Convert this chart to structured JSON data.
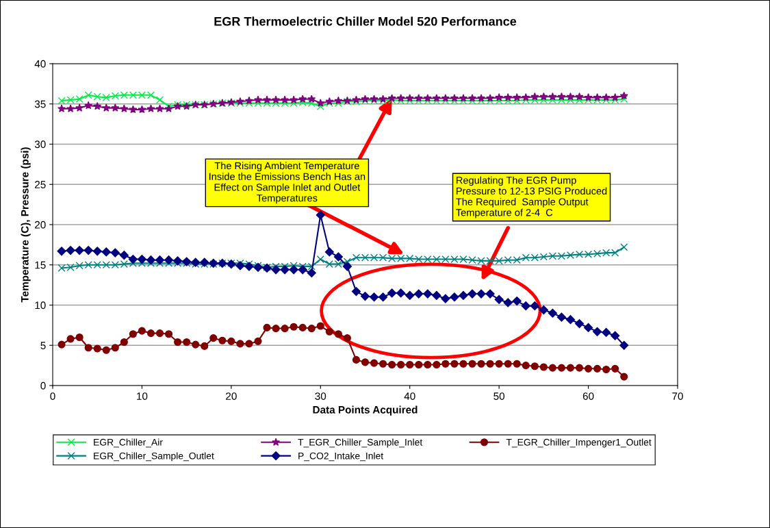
{
  "chart_data": {
    "type": "line",
    "title": "EGR Thermoelectric Chiller Model 520 Performance",
    "xlabel": "Data Points Acquired",
    "ylabel": "Temperature (C), Pressure (psi)",
    "x": [
      1,
      2,
      3,
      4,
      5,
      6,
      7,
      8,
      9,
      10,
      11,
      12,
      13,
      14,
      15,
      16,
      17,
      18,
      19,
      20,
      21,
      22,
      23,
      24,
      25,
      26,
      27,
      28,
      29,
      30,
      31,
      32,
      33,
      34,
      35,
      36,
      37,
      38,
      39,
      40,
      41,
      42,
      43,
      44,
      45,
      46,
      47,
      48,
      49,
      50,
      51,
      52,
      53,
      54,
      55,
      56,
      57,
      58,
      59,
      60,
      61,
      62,
      63,
      64
    ],
    "series": [
      {
        "name": "EGR_Chiller_Air",
        "color": "#00ee44",
        "marker": "cross",
        "values": [
          35.4,
          35.5,
          35.6,
          36.1,
          35.9,
          35.8,
          36.0,
          36.1,
          36.1,
          36.1,
          36.1,
          35.5,
          34.7,
          34.9,
          34.9,
          34.9,
          34.9,
          35.0,
          35.1,
          35.1,
          35.1,
          35.1,
          35.1,
          35.1,
          35.1,
          35.1,
          35.1,
          35.2,
          35.1,
          34.7,
          35.1,
          35.1,
          35.3,
          35.3,
          35.4,
          35.4,
          35.4,
          35.5,
          35.4,
          35.4,
          35.4,
          35.4,
          35.4,
          35.4,
          35.4,
          35.4,
          35.4,
          35.4,
          35.4,
          35.4,
          35.4,
          35.4,
          35.5,
          35.5,
          35.5,
          35.5,
          35.5,
          35.5,
          35.5,
          35.5,
          35.5,
          35.5,
          35.5,
          35.6
        ]
      },
      {
        "name": "T_EGR_Chiller_Sample_Inlet",
        "color": "#800080",
        "marker": "star",
        "values": [
          34.4,
          34.4,
          34.5,
          34.8,
          34.7,
          34.5,
          34.5,
          34.4,
          34.3,
          34.3,
          34.4,
          34.4,
          34.4,
          34.7,
          34.7,
          34.9,
          34.9,
          35.0,
          35.1,
          35.2,
          35.3,
          35.4,
          35.5,
          35.5,
          35.5,
          35.5,
          35.5,
          35.6,
          35.6,
          35.1,
          35.3,
          35.4,
          35.4,
          35.5,
          35.6,
          35.6,
          35.6,
          35.7,
          35.7,
          35.7,
          35.7,
          35.7,
          35.7,
          35.7,
          35.7,
          35.7,
          35.7,
          35.7,
          35.7,
          35.8,
          35.8,
          35.8,
          35.8,
          35.9,
          35.9,
          35.9,
          35.9,
          35.9,
          35.9,
          35.8,
          35.8,
          35.8,
          35.8,
          36.0
        ]
      },
      {
        "name": "T_EGR_Chiller_Impenger1_Outlet",
        "color": "#800000",
        "marker": "circle",
        "values": [
          5.1,
          5.8,
          6.0,
          4.7,
          4.6,
          4.4,
          4.7,
          5.4,
          6.4,
          6.8,
          6.5,
          6.5,
          6.4,
          5.4,
          5.4,
          5.1,
          4.9,
          5.9,
          5.6,
          5.5,
          5.2,
          5.2,
          5.5,
          7.2,
          7.1,
          7.1,
          7.3,
          7.2,
          7.1,
          7.4,
          6.7,
          6.4,
          5.9,
          3.2,
          2.9,
          2.8,
          2.7,
          2.6,
          2.6,
          2.6,
          2.6,
          2.6,
          2.6,
          2.7,
          2.7,
          2.7,
          2.7,
          2.7,
          2.7,
          2.7,
          2.7,
          2.7,
          2.5,
          2.4,
          2.3,
          2.2,
          2.2,
          2.2,
          2.2,
          2.1,
          2.1,
          2.0,
          2.1,
          1.1
        ]
      },
      {
        "name": "EGR_Chiller_Sample_Outlet",
        "color": "#008080",
        "marker": "cross",
        "values": [
          14.6,
          14.7,
          14.9,
          15.0,
          15.0,
          15.0,
          15.0,
          15.1,
          15.2,
          15.2,
          15.2,
          15.2,
          15.2,
          15.2,
          15.2,
          15.1,
          15.1,
          15.1,
          15.2,
          15.2,
          15.2,
          15.1,
          14.9,
          14.7,
          14.8,
          14.8,
          14.9,
          14.8,
          14.8,
          15.7,
          15.1,
          15.1,
          15.4,
          15.9,
          15.9,
          15.9,
          15.9,
          15.8,
          15.8,
          15.8,
          15.7,
          15.7,
          15.7,
          15.7,
          15.7,
          15.7,
          15.6,
          15.5,
          15.5,
          15.5,
          15.6,
          15.6,
          15.9,
          15.9,
          16.0,
          16.1,
          16.1,
          16.2,
          16.3,
          16.3,
          16.4,
          16.5,
          16.5,
          17.2
        ]
      },
      {
        "name": "P_CO2_Intake_Inlet",
        "color": "#000080",
        "marker": "diamond",
        "values": [
          16.7,
          16.8,
          16.8,
          16.8,
          16.7,
          16.6,
          16.5,
          16.2,
          15.7,
          15.7,
          15.6,
          15.6,
          15.6,
          15.5,
          15.4,
          15.3,
          15.3,
          15.2,
          15.2,
          15.1,
          14.9,
          14.8,
          14.7,
          14.6,
          14.4,
          14.4,
          14.4,
          14.4,
          14.0,
          21.2,
          16.6,
          16.0,
          14.8,
          11.7,
          11.1,
          11.0,
          11.0,
          11.5,
          11.5,
          11.2,
          11.4,
          11.4,
          11.2,
          10.8,
          11.0,
          11.2,
          11.4,
          11.4,
          11.4,
          10.7,
          10.3,
          10.5,
          9.9,
          9.9,
          9.4,
          9.0,
          8.5,
          8.2,
          7.7,
          7.2,
          6.7,
          6.6,
          6.2,
          5.0
        ]
      }
    ],
    "xlim": [
      0,
      70
    ],
    "xticks": [
      0,
      10,
      20,
      30,
      40,
      50,
      60,
      70
    ],
    "ylim": [
      0,
      40
    ],
    "yticks": [
      0,
      5,
      10,
      15,
      20,
      25,
      30,
      35,
      40
    ],
    "grid": "y",
    "legend": "bottom",
    "annotations": [
      {
        "text": "The Rising Ambient Temperature\nInside the Emissions Bench Has an\nEffect on Sample Inlet and Outlet\nTemperatures",
        "x": 38,
        "y": 35.7
      },
      "Regulating The EGR Pump\nPressure to 12-13 PSIG Produced\nThe Required  Sample Output\nTemperature of 2-4  C"
    ]
  }
}
